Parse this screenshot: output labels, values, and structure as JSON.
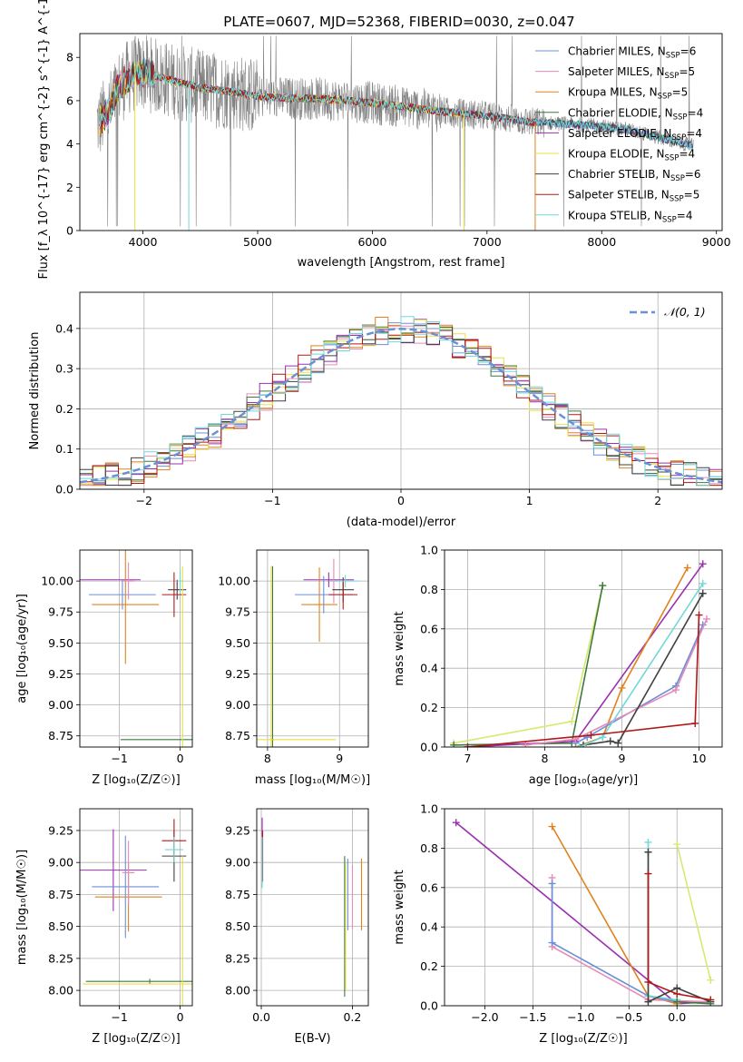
{
  "title": "PLATE=0607, MJD=52368, FIBERID=0030, z=0.047",
  "legend_spectrum": [
    {
      "name": "Chabrier MILES, N_{SSP}=6",
      "color": "#6b8fd8"
    },
    {
      "name": "Salpeter MILES, N_{SSP}=5",
      "color": "#e88ab8"
    },
    {
      "name": "Kroupa MILES, N_{SSP}=5",
      "color": "#e0821e"
    },
    {
      "name": "Chabrier ELODIE, N_{SSP}=4",
      "color": "#3d7a3d"
    },
    {
      "name": "Salpeter ELODIE, N_{SSP}=4",
      "color": "#9b30b0"
    },
    {
      "name": "Kroupa ELODIE, N_{SSP}=4",
      "color": "#e8e040"
    },
    {
      "name": "Chabrier STELIB, N_{SSP}=6",
      "color": "#404040"
    },
    {
      "name": "Salpeter STELIB, N_{SSP}=5",
      "color": "#b01818"
    },
    {
      "name": "Kroupa STELIB, N_{SSP}=4",
      "color": "#70d8d8"
    }
  ],
  "legend_resid": "𝒩(0, 1)",
  "chart_data": [
    {
      "id": "spectrum",
      "type": "line",
      "xlabel": "wavelength [Angstrom, rest frame]",
      "ylabel": "Flux [f_λ 10^{-17} erg cm^{-2} s^{-1} A^{-1}]",
      "xlim": [
        3450,
        9050
      ],
      "ylim": [
        0,
        9.1
      ],
      "xticks": [
        4000,
        5000,
        6000,
        7000,
        8000,
        9000
      ],
      "yticks": [
        0,
        2,
        4,
        6,
        8
      ],
      "data_color": "#808080",
      "data_xrange": [
        3600,
        8800
      ],
      "model_profile": [
        [
          3620,
          5.0
        ],
        [
          3700,
          5.5
        ],
        [
          3800,
          6.7
        ],
        [
          3900,
          7.2
        ],
        [
          4000,
          7.3
        ],
        [
          4200,
          7.0
        ],
        [
          4500,
          6.6
        ],
        [
          4800,
          6.4
        ],
        [
          5000,
          6.2
        ],
        [
          5300,
          6.1
        ],
        [
          5500,
          6.1
        ],
        [
          5800,
          6.0
        ],
        [
          6000,
          5.9
        ],
        [
          6300,
          5.7
        ],
        [
          6600,
          5.5
        ],
        [
          7000,
          5.3
        ],
        [
          7400,
          5.0
        ],
        [
          7800,
          4.9
        ],
        [
          8200,
          4.7
        ],
        [
          8500,
          4.3
        ],
        [
          8800,
          3.9
        ]
      ],
      "grid": false
    },
    {
      "id": "residuals",
      "type": "line",
      "xlabel": "(data-model)/error",
      "ylabel": "Normed distribution",
      "xlim": [
        -2.5,
        2.5
      ],
      "ylim": [
        0,
        0.49
      ],
      "xticks": [
        -2,
        -1,
        0,
        1,
        2
      ],
      "xticklabels": [
        "−2",
        "−1",
        "0",
        "1",
        "2"
      ],
      "yticks": [
        0.0,
        0.1,
        0.2,
        0.3,
        0.4
      ],
      "yticklabels": [
        "0.0",
        "0.1",
        "0.2",
        "0.3",
        "0.4"
      ],
      "bin_width": 0.1,
      "series": [
        {
          "name": "𝒩(0, 1)",
          "color": "#6b8fd8",
          "style": "dashed"
        }
      ],
      "histogram_colors": [
        "#6b8fd8",
        "#e88ab8",
        "#e0821e",
        "#3d7a3d",
        "#9b30b0",
        "#e8e040",
        "#404040",
        "#b01818",
        "#70d8d8"
      ],
      "legend": "top-right",
      "grid": true
    },
    {
      "id": "age-vs-Z",
      "type": "scatter",
      "xlabel": "Z [log₁₀(Z/Z☉)]",
      "ylabel": "age  [log₁₀(age/yr)]",
      "xlim": [
        -1.65,
        0.2
      ],
      "ylim": [
        8.66,
        10.25
      ],
      "xticks": [
        -1,
        0
      ],
      "xticklabels": [
        "−1",
        "0"
      ],
      "yticks": [
        8.75,
        9.0,
        9.25,
        9.5,
        9.75,
        10.0
      ],
      "yticklabels": [
        "8.75",
        "9.00",
        "9.25",
        "9.50",
        "9.75",
        "10.00"
      ],
      "grid": true,
      "points": [
        {
          "x": -1.2,
          "y": 10.01,
          "xerr": 0.55,
          "yerr": 0.0,
          "color": "#9b30b0"
        },
        {
          "x": -0.95,
          "y": 9.89,
          "xerr": 0.55,
          "yerr": 0.12,
          "color": "#6b8fd8"
        },
        {
          "x": -0.9,
          "y": 9.81,
          "xerr": 0.55,
          "yerr": 0.48,
          "color": "#e0821e"
        },
        {
          "x": -0.85,
          "y": 10.0,
          "xerr": 0.1,
          "yerr": 0.15,
          "color": "#e88ab8"
        },
        {
          "x": -0.05,
          "y": 9.93,
          "xerr": 0.15,
          "yerr": 0.08,
          "color": "#404040"
        },
        {
          "x": -0.1,
          "y": 9.89,
          "xerr": 0.2,
          "yerr": 0.18,
          "color": "#b01818"
        },
        {
          "x": 0.0,
          "y": 10.0,
          "xerr": 0.05,
          "yerr": 0.1,
          "color": "#70d8d8"
        },
        {
          "x": 0.02,
          "y": 8.72,
          "xerr": 1.0,
          "yerr": 0.0,
          "color": "#3d7a3d"
        },
        {
          "x": 0.04,
          "y": 8.72,
          "xerr": 0.0,
          "yerr": 1.4,
          "color": "#e8e040"
        }
      ]
    },
    {
      "id": "age-vs-mass",
      "type": "scatter",
      "xlabel": "mass [log₁₀(M/M☉)]",
      "ylabel": "",
      "xlim": [
        7.85,
        9.4
      ],
      "ylim": [
        8.66,
        10.25
      ],
      "xticks": [
        8,
        9
      ],
      "xticklabels": [
        "8",
        "9"
      ],
      "yticks": [
        8.75,
        9.0,
        9.25,
        9.5,
        9.75,
        10.0
      ],
      "yticklabels": [
        "8.75",
        "9.00",
        "9.25",
        "9.50",
        "9.75",
        "10.00"
      ],
      "grid": true,
      "points": [
        {
          "x": 8.85,
          "y": 10.01,
          "xerr": 0.35,
          "yerr": 0.06,
          "color": "#9b30b0"
        },
        {
          "x": 8.78,
          "y": 9.89,
          "xerr": 0.4,
          "yerr": 0.15,
          "color": "#6b8fd8"
        },
        {
          "x": 8.72,
          "y": 9.81,
          "xerr": 0.25,
          "yerr": 0.3,
          "color": "#e0821e"
        },
        {
          "x": 8.92,
          "y": 10.0,
          "xerr": 0.05,
          "yerr": 0.18,
          "color": "#e88ab8"
        },
        {
          "x": 9.05,
          "y": 9.93,
          "xerr": 0.15,
          "yerr": 0.1,
          "color": "#404040"
        },
        {
          "x": 9.05,
          "y": 9.89,
          "xerr": 0.2,
          "yerr": 0.12,
          "color": "#b01818"
        },
        {
          "x": 9.08,
          "y": 10.0,
          "xerr": 0.2,
          "yerr": 0.05,
          "color": "#70d8d8"
        },
        {
          "x": 8.07,
          "y": 8.72,
          "xerr": 0.02,
          "yerr": 1.4,
          "color": "#3d7a3d"
        },
        {
          "x": 8.05,
          "y": 8.72,
          "xerr": 0.9,
          "yerr": 1.4,
          "color": "#e8e040"
        }
      ]
    },
    {
      "id": "massweight-vs-age",
      "type": "line",
      "xlabel": "age  [log₁₀(age/yr)]",
      "ylabel": "mass weight",
      "xlim": [
        6.7,
        10.3
      ],
      "ylim": [
        0,
        1.0
      ],
      "xticks": [
        7,
        8,
        9,
        10
      ],
      "xticklabels": [
        "7",
        "8",
        "9",
        "10"
      ],
      "yticks": [
        0.0,
        0.2,
        0.4,
        0.6,
        0.8,
        1.0
      ],
      "yticklabels": [
        "0.0",
        "0.2",
        "0.4",
        "0.6",
        "0.8",
        "1.0"
      ],
      "grid": true,
      "series": [
        {
          "name": "Kroupa ELODIE",
          "color": "#d8e870",
          "points": [
            [
              6.82,
              0.02
            ],
            [
              8.35,
              0.13
            ],
            [
              8.75,
              0.82
            ]
          ]
        },
        {
          "name": "Chabrier ELODIE",
          "color": "#3d7a3d",
          "points": [
            [
              6.82,
              0.01
            ],
            [
              8.35,
              0.02
            ],
            [
              8.75,
              0.82
            ]
          ]
        },
        {
          "name": "Salpeter ELODIE",
          "color": "#9b30b0",
          "points": [
            [
              7.0,
              0.0
            ],
            [
              8.4,
              0.03
            ],
            [
              10.05,
              0.93
            ]
          ]
        },
        {
          "name": "Kroupa MILES",
          "color": "#e0821e",
          "points": [
            [
              8.4,
              0.0
            ],
            [
              8.75,
              0.05
            ],
            [
              9.0,
              0.3
            ],
            [
              9.85,
              0.91
            ]
          ]
        },
        {
          "name": "Chabrier MILES",
          "color": "#6b8fd8",
          "points": [
            [
              8.4,
              0.02
            ],
            [
              8.55,
              0.05
            ],
            [
              9.7,
              0.31
            ],
            [
              10.05,
              0.62
            ]
          ]
        },
        {
          "name": "Salpeter MILES",
          "color": "#e88ab8",
          "points": [
            [
              7.75,
              0.01
            ],
            [
              8.4,
              0.04
            ],
            [
              9.7,
              0.29
            ],
            [
              10.1,
              0.65
            ]
          ]
        },
        {
          "name": "Chabrier STELIB",
          "color": "#404040",
          "points": [
            [
              8.5,
              0.01
            ],
            [
              8.85,
              0.03
            ],
            [
              8.95,
              0.02
            ],
            [
              10.05,
              0.78
            ]
          ]
        },
        {
          "name": "Kroupa STELIB",
          "color": "#70d8d8",
          "points": [
            [
              8.45,
              0.0
            ],
            [
              8.75,
              0.05
            ],
            [
              10.05,
              0.83
            ]
          ]
        },
        {
          "name": "Salpeter STELIB",
          "color": "#b01818",
          "points": [
            [
              7.0,
              0.0
            ],
            [
              8.6,
              0.06
            ],
            [
              9.95,
              0.12
            ],
            [
              10.0,
              0.67
            ]
          ]
        }
      ]
    },
    {
      "id": "mass-vs-Z",
      "type": "scatter",
      "xlabel": "Z [log₁₀(Z/Z☉)]",
      "ylabel": "mass [log₁₀(M/M☉)]",
      "xlim": [
        -1.65,
        0.2
      ],
      "ylim": [
        7.88,
        9.42
      ],
      "xticks": [
        -1,
        0
      ],
      "xticklabels": [
        "−1",
        "0"
      ],
      "yticks": [
        8.0,
        8.25,
        8.5,
        8.75,
        9.0,
        9.25
      ],
      "yticklabels": [
        "8.00",
        "8.25",
        "8.50",
        "8.75",
        "9.00",
        "9.25"
      ],
      "grid": true,
      "points": [
        {
          "x": -1.1,
          "y": 8.94,
          "xerr": 0.55,
          "yerr": 0.32,
          "color": "#9b30b0"
        },
        {
          "x": -0.9,
          "y": 8.81,
          "xerr": 0.55,
          "yerr": 0.4,
          "color": "#6b8fd8"
        },
        {
          "x": -0.85,
          "y": 8.73,
          "xerr": 0.55,
          "yerr": 0.27,
          "color": "#e0821e"
        },
        {
          "x": -0.85,
          "y": 8.92,
          "xerr": 0.1,
          "yerr": 0.25,
          "color": "#e88ab8"
        },
        {
          "x": -0.1,
          "y": 9.05,
          "xerr": 0.2,
          "yerr": 0.2,
          "color": "#404040"
        },
        {
          "x": -0.1,
          "y": 9.17,
          "xerr": 0.2,
          "yerr": 0.17,
          "color": "#b01818"
        },
        {
          "x": -0.1,
          "y": 9.1,
          "xerr": 0.15,
          "yerr": 0.1,
          "color": "#70d8d8"
        },
        {
          "x": -0.5,
          "y": 8.07,
          "xerr": 1.05,
          "yerr": 0.02,
          "color": "#3d7a3d"
        },
        {
          "x": -0.55,
          "y": 8.05,
          "xerr": 1.05,
          "yerr": 0.0,
          "color": "#e8e040"
        },
        {
          "x": 0.04,
          "y": 8.05,
          "xerr": 0.0,
          "yerr": 1.0,
          "color": "#e8e040"
        }
      ]
    },
    {
      "id": "mass-vs-EBV",
      "type": "scatter",
      "xlabel": "E(B-V)",
      "ylabel": "",
      "xlim": [
        -0.01,
        0.235
      ],
      "ylim": [
        7.88,
        9.42
      ],
      "xticks": [
        0.0,
        0.2
      ],
      "xticklabels": [
        "0.0",
        "0.2"
      ],
      "yticks": [
        8.0,
        8.25,
        8.5,
        8.75,
        9.0,
        9.25
      ],
      "yticklabels": [
        "8.00",
        "8.25",
        "8.50",
        "8.75",
        "9.00",
        "9.25"
      ],
      "grid": true,
      "points": [
        {
          "x": 0.002,
          "y": 9.1,
          "xerr": 0.0,
          "yerr": 0.25,
          "color": "#9b30b0"
        },
        {
          "x": 0.003,
          "y": 9.05,
          "xerr": 0.0,
          "yerr": 0.2,
          "color": "#b01818"
        },
        {
          "x": 0.002,
          "y": 9.0,
          "xerr": 0.0,
          "yerr": 0.2,
          "color": "#70d8d8"
        },
        {
          "x": 0.183,
          "y": 8.5,
          "xerr": 0.0,
          "yerr": 0.55,
          "color": "#3d7a3d"
        },
        {
          "x": 0.185,
          "y": 8.5,
          "xerr": 0.0,
          "yerr": 0.5,
          "color": "#e8e040"
        },
        {
          "x": 0.19,
          "y": 8.75,
          "xerr": 0.0,
          "yerr": 0.28,
          "color": "#6b8fd8"
        },
        {
          "x": 0.2,
          "y": 8.73,
          "xerr": 0.0,
          "yerr": 0.25,
          "color": "#e88ab8"
        },
        {
          "x": 0.22,
          "y": 8.75,
          "xerr": 0.0,
          "yerr": 0.28,
          "color": "#e0821e"
        }
      ]
    },
    {
      "id": "massweight-vs-Z",
      "type": "line",
      "xlabel": "Z [log₁₀(Z/Z☉)]",
      "ylabel": "mass weight",
      "xlim": [
        -2.42,
        0.47
      ],
      "ylim": [
        0,
        1.0
      ],
      "xticks": [
        -2.0,
        -1.5,
        -1.0,
        -0.5,
        0.0
      ],
      "xticklabels": [
        "−2.0",
        "−1.5",
        "−1.0",
        "−0.5",
        "0.0"
      ],
      "yticks": [
        0.0,
        0.2,
        0.4,
        0.6,
        0.8,
        1.0
      ],
      "yticklabels": [
        "0.0",
        "0.2",
        "0.4",
        "0.6",
        "0.8",
        "1.0"
      ],
      "grid": true,
      "series": [
        {
          "name": "Salpeter ELODIE",
          "color": "#9b30b0",
          "points": [
            [
              -2.3,
              0.93
            ],
            [
              0.0,
              0.01
            ],
            [
              0.35,
              0.02
            ]
          ]
        },
        {
          "name": "Kroupa MILES",
          "color": "#e0821e",
          "points": [
            [
              -1.3,
              0.91
            ],
            [
              -0.3,
              0.05
            ],
            [
              0.0,
              0.01
            ]
          ]
        },
        {
          "name": "Salpeter MILES",
          "color": "#e88ab8",
          "points": [
            [
              -1.3,
              0.65
            ],
            [
              -1.3,
              0.3
            ],
            [
              -0.3,
              0.03
            ],
            [
              0.35,
              0.02
            ]
          ]
        },
        {
          "name": "Chabrier MILES",
          "color": "#6b8fd8",
          "points": [
            [
              -1.3,
              0.62
            ],
            [
              -1.3,
              0.32
            ],
            [
              -0.3,
              0.05
            ],
            [
              0.0,
              0.02
            ]
          ]
        },
        {
          "name": "Kroupa STELIB",
          "color": "#70d8d8",
          "points": [
            [
              -0.3,
              0.83
            ],
            [
              -0.3,
              0.05
            ],
            [
              0.0,
              0.03
            ]
          ]
        },
        {
          "name": "Chabrier STELIB",
          "color": "#404040",
          "points": [
            [
              -0.3,
              0.78
            ],
            [
              -0.3,
              0.02
            ],
            [
              0.0,
              0.09
            ],
            [
              0.35,
              0.02
            ]
          ]
        },
        {
          "name": "Salpeter STELIB",
          "color": "#b01818",
          "points": [
            [
              -0.3,
              0.67
            ],
            [
              -0.3,
              0.12
            ],
            [
              0.0,
              0.06
            ],
            [
              0.35,
              0.03
            ]
          ]
        },
        {
          "name": "Kroupa ELODIE",
          "color": "#d8e870",
          "points": [
            [
              0.0,
              0.82
            ],
            [
              0.35,
              0.13
            ]
          ]
        },
        {
          "name": "Chabrier ELODIE",
          "color": "#3d7a3d",
          "points": [
            [
              0.0,
              0.02
            ],
            [
              0.35,
              0.01
            ]
          ]
        }
      ]
    }
  ]
}
